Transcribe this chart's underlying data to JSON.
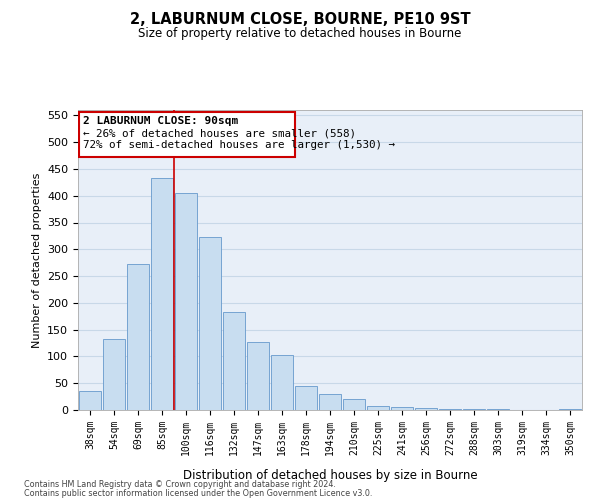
{
  "title": "2, LABURNUM CLOSE, BOURNE, PE10 9ST",
  "subtitle": "Size of property relative to detached houses in Bourne",
  "xlabel": "Distribution of detached houses by size in Bourne",
  "ylabel": "Number of detached properties",
  "bar_labels": [
    "38sqm",
    "54sqm",
    "69sqm",
    "85sqm",
    "100sqm",
    "116sqm",
    "132sqm",
    "147sqm",
    "163sqm",
    "178sqm",
    "194sqm",
    "210sqm",
    "225sqm",
    "241sqm",
    "256sqm",
    "272sqm",
    "288sqm",
    "303sqm",
    "319sqm",
    "334sqm",
    "350sqm"
  ],
  "bar_values": [
    35,
    133,
    272,
    433,
    405,
    323,
    183,
    127,
    103,
    45,
    30,
    20,
    8,
    5,
    3,
    2,
    1,
    1,
    0,
    0,
    2
  ],
  "bar_color": "#c8ddf0",
  "bar_edge_color": "#6699cc",
  "vline_color": "#cc0000",
  "ylim": [
    0,
    560
  ],
  "yticks": [
    0,
    50,
    100,
    150,
    200,
    250,
    300,
    350,
    400,
    450,
    500,
    550
  ],
  "annotation_title": "2 LABURNUM CLOSE: 90sqm",
  "annotation_line1": "← 26% of detached houses are smaller (558)",
  "annotation_line2": "72% of semi-detached houses are larger (1,530) →",
  "footer_line1": "Contains HM Land Registry data © Crown copyright and database right 2024.",
  "footer_line2": "Contains public sector information licensed under the Open Government Licence v3.0.",
  "bg_color": "#ffffff",
  "plot_bg_color": "#e8eff8",
  "grid_color": "#c8d8e8"
}
